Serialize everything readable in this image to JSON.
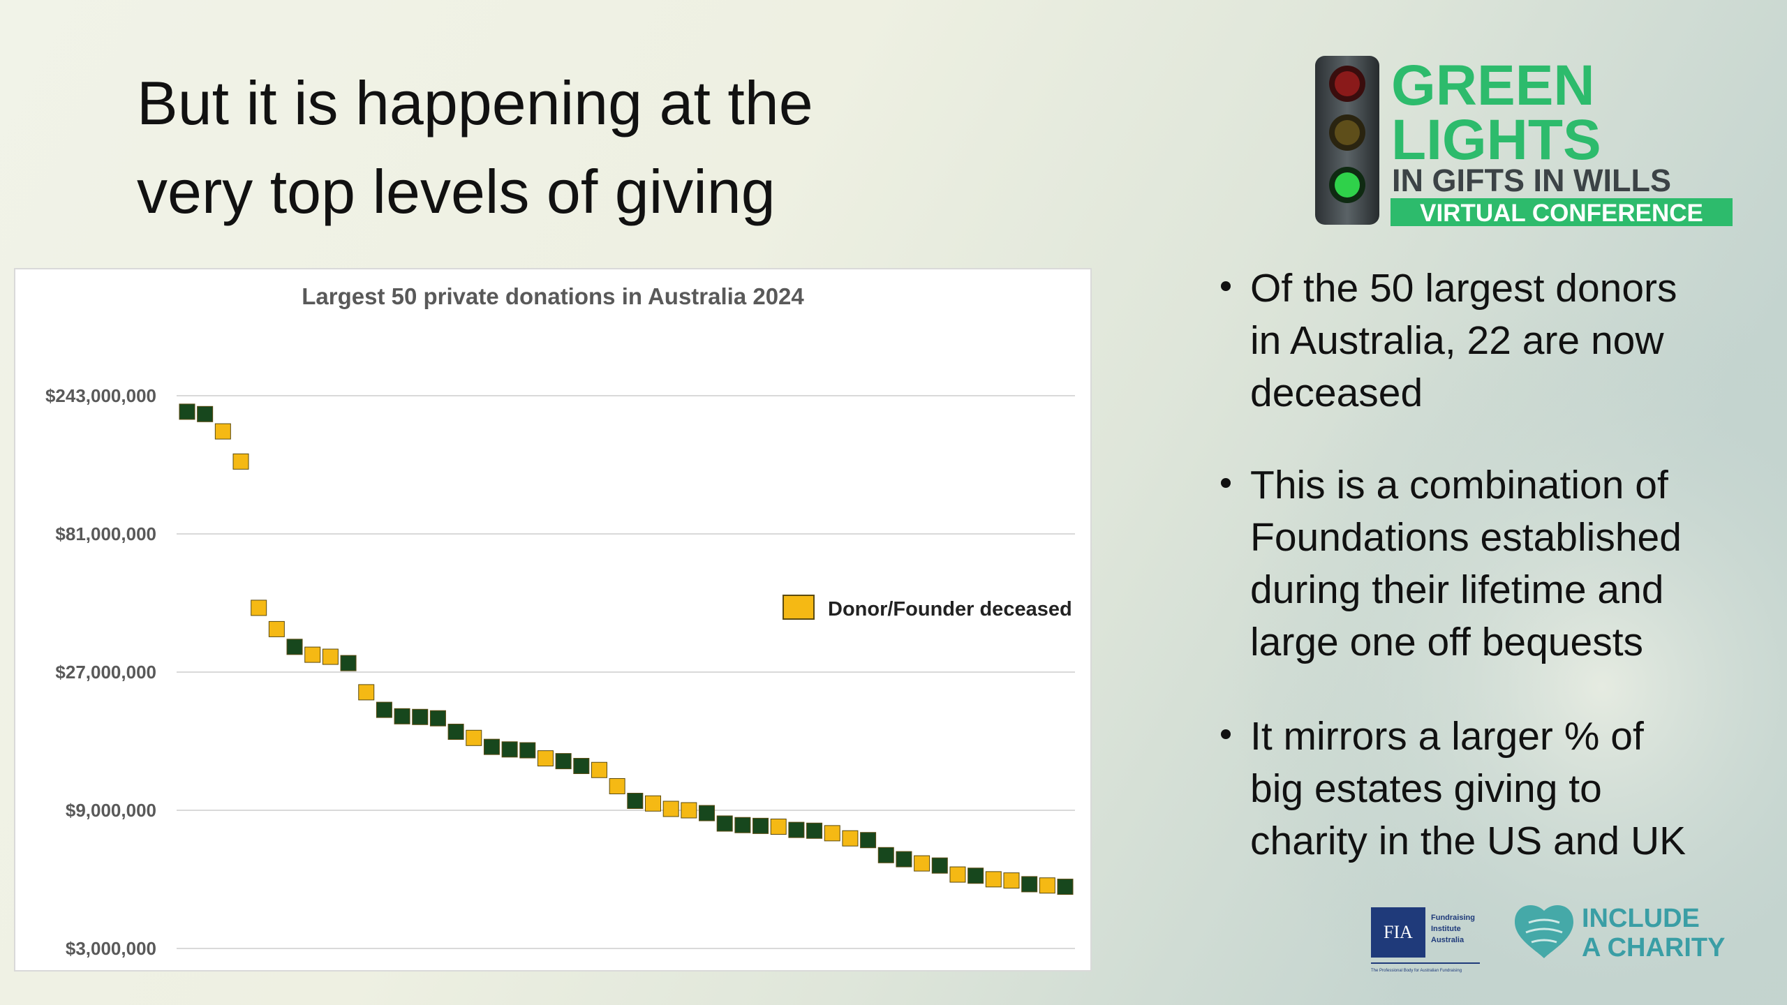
{
  "header": {
    "title_lines": [
      "But it is happening at the",
      "very top levels of giving"
    ]
  },
  "logo": {
    "line1": "GREEN",
    "line2": "LIGHTS",
    "line3": "IN GIFTS IN WILLS",
    "line4": "VIRTUAL CONFERENCE"
  },
  "bullets": [
    [
      "Of the 50 largest donors",
      "in Australia, 22 are now",
      "deceased"
    ],
    [
      "This is a combination of",
      "Foundations established",
      "during their lifetime and",
      "large one off bequests"
    ],
    [
      "It mirrors a larger % of",
      "big estates giving to",
      "charity in the US and UK"
    ]
  ],
  "footer_logos": {
    "fia": "FIA",
    "fia_name": [
      "Fundraising",
      "Institute",
      "Australia"
    ],
    "fia_tagline": "The Professional Body for Australian Fundraising",
    "include": [
      "INCLUDE",
      "A CHARITY"
    ]
  },
  "chart_data": {
    "type": "scatter",
    "title": "Largest 50 private donations in Australia 2024",
    "values": [
      214000000,
      210000000,
      183000000,
      144000000,
      45000000,
      38000000,
      33000000,
      31000000,
      30500000,
      29000000,
      23000000,
      20000000,
      19000000,
      18900000,
      18700000,
      16800000,
      16000000,
      14900000,
      14600000,
      14500000,
      13600000,
      13300000,
      12800000,
      12400000,
      10900000,
      9700000,
      9500000,
      9100000,
      9000000,
      8800000,
      8100000,
      8000000,
      7950000,
      7900000,
      7700000,
      7650000,
      7500000,
      7200000,
      7100000,
      6300000,
      6100000,
      5900000,
      5800000,
      5400000,
      5350000,
      5200000,
      5150000,
      5000000,
      4950000,
      4900000
    ],
    "colors": [
      "#17471d",
      "#17471d",
      "#f5b914",
      "#f5b914",
      "#f5b914",
      "#f5b914",
      "#17471d",
      "#f5b914",
      "#f5b914",
      "#17471d",
      "#f5b914",
      "#17471d",
      "#17471d",
      "#17471d",
      "#17471d",
      "#17471d",
      "#f5b914",
      "#17471d",
      "#17471d",
      "#17471d",
      "#f5b914",
      "#17471d",
      "#17471d",
      "#f5b914",
      "#f5b914",
      "#17471d",
      "#f5b914",
      "#f5b914",
      "#f5b914",
      "#17471d",
      "#17471d",
      "#17471d",
      "#17471d",
      "#f5b914",
      "#17471d",
      "#17471d",
      "#f5b914",
      "#f5b914",
      "#17471d",
      "#17471d",
      "#17471d",
      "#f5b914",
      "#17471d",
      "#f5b914",
      "#17471d",
      "#f5b914",
      "#f5b914",
      "#17471d",
      "#f5b914",
      "#17471d"
    ],
    "legend": {
      "name": "Donor/Founder deceased",
      "color": "#f5b914",
      "position": "right"
    },
    "log_scale": true,
    "grid": true,
    "ylim": [
      3000000,
      243000000
    ],
    "yticks": [
      {
        "value": 3000000,
        "label": "$3,000,000"
      },
      {
        "value": 9000000,
        "label": "$9,000,000"
      },
      {
        "value": 27000000,
        "label": "$27,000,000"
      },
      {
        "value": 81000000,
        "label": "$81,000,000"
      },
      {
        "value": 243000000,
        "label": "$243,000,000"
      }
    ]
  }
}
